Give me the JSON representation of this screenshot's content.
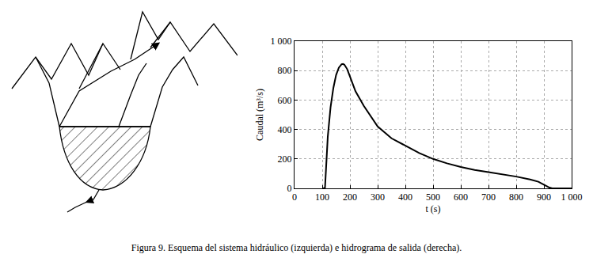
{
  "chart_data": {
    "type": "line",
    "x": [
      100,
      105,
      110,
      120,
      130,
      140,
      150,
      160,
      170,
      175,
      180,
      190,
      200,
      220,
      250,
      300,
      350,
      400,
      450,
      500,
      550,
      600,
      650,
      700,
      750,
      800,
      850,
      880,
      900,
      920,
      930,
      1000
    ],
    "values": [
      0,
      0,
      5,
      350,
      550,
      680,
      770,
      820,
      843,
      845,
      840,
      810,
      760,
      660,
      560,
      420,
      340,
      290,
      240,
      200,
      170,
      145,
      125,
      110,
      95,
      80,
      60,
      45,
      25,
      5,
      0,
      0
    ],
    "color": "#000000",
    "xlabel": "t (s)",
    "ylabel": "Caudal (m³/s)",
    "xlim": [
      0,
      1000
    ],
    "ylim": [
      0,
      1000
    ],
    "xticks": [
      0,
      100,
      200,
      300,
      400,
      500,
      600,
      700,
      800,
      900,
      {
        "value": 1000,
        "label": "1 000"
      }
    ],
    "yticks": [
      0,
      200,
      400,
      600,
      800,
      {
        "value": 1000,
        "label": "1 000"
      }
    ],
    "grid": true
  },
  "caption": "Figura 9. Esquema del sistema hidráulico (izquierda) e hidrograma de salida (derecha)."
}
